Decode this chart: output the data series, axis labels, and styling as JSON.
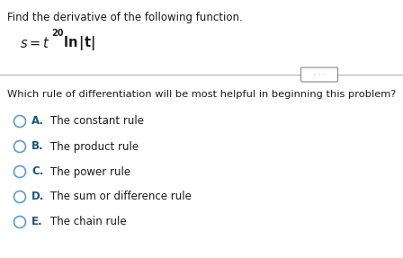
{
  "title": "Find the derivative of the following function.",
  "question": "Which rule of differentiation will be most helpful in beginning this problem?",
  "options": [
    {
      "letter": "A.",
      "text": "The constant rule"
    },
    {
      "letter": "B.",
      "text": "The product rule"
    },
    {
      "letter": "C.",
      "text": "The power rule"
    },
    {
      "letter": "D.",
      "text": "The sum or difference rule"
    },
    {
      "letter": "E.",
      "text": "The chain rule"
    }
  ],
  "bg_color": "#ffffff",
  "text_color": "#1a1a1a",
  "option_letter_color": "#1a5276",
  "option_text_color": "#1a1a1a",
  "circle_color": "#5b9bd5",
  "divider_color": "#b0b0b0",
  "ellipsis_color": "#888888",
  "title_fontsize": 8.5,
  "formula_fontsize": 10.5,
  "sup_fontsize": 7.0,
  "question_fontsize": 8.2,
  "option_fontsize": 8.5
}
